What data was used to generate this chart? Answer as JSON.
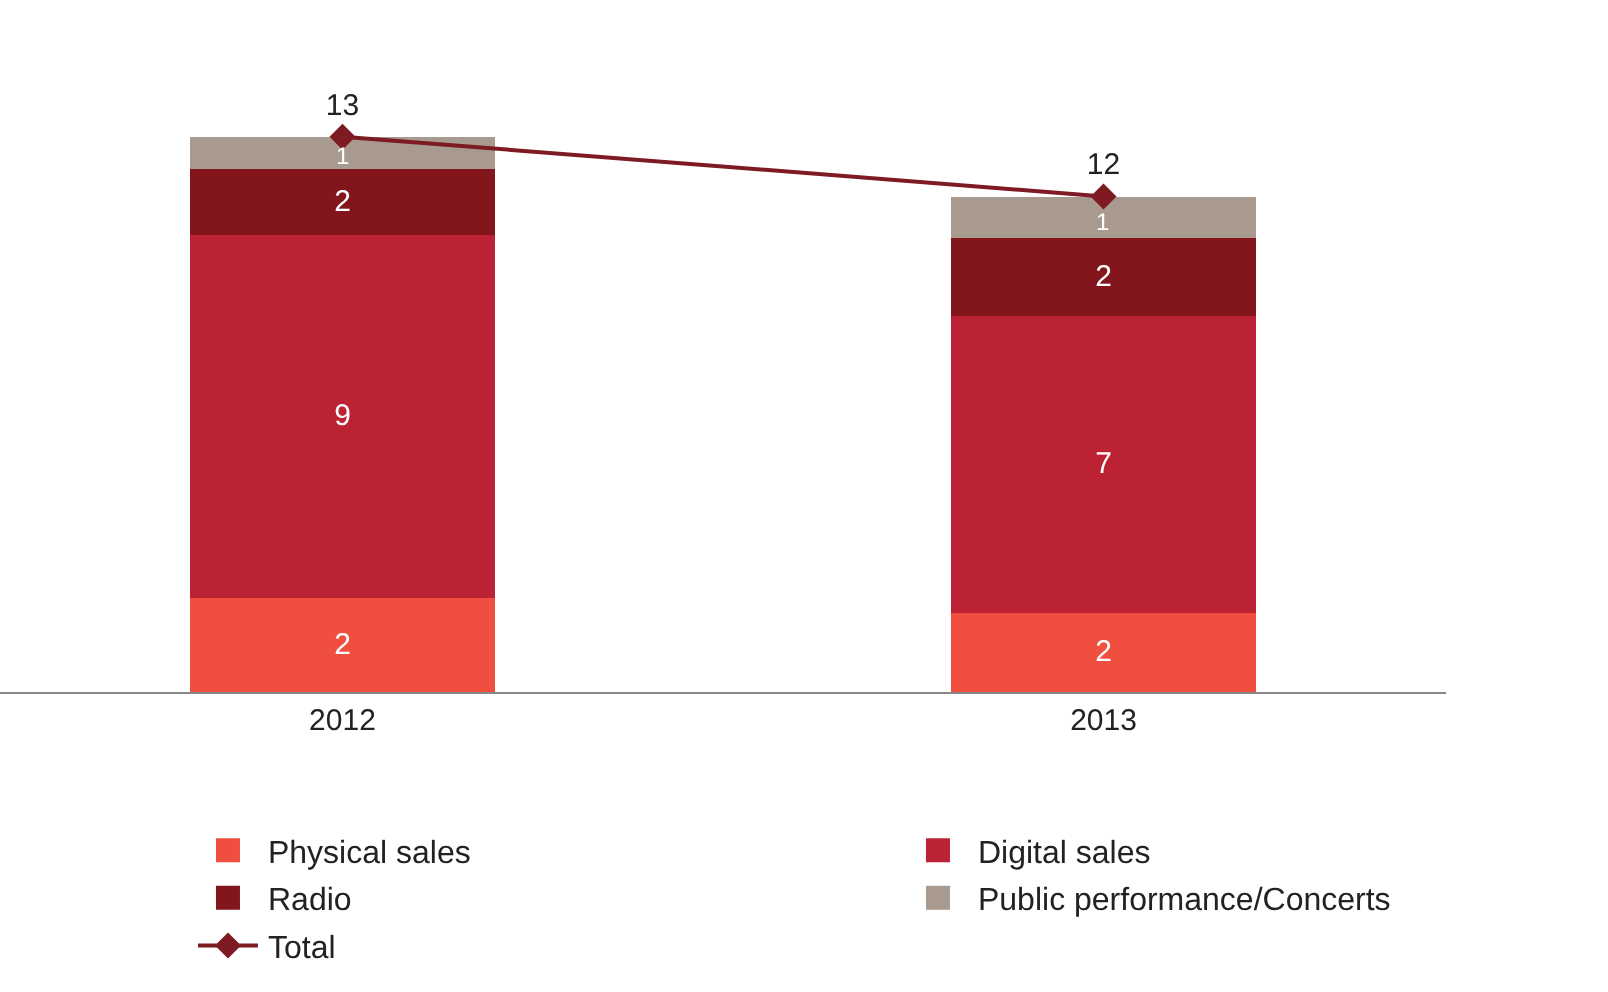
{
  "chart_data": {
    "type": "bar",
    "stacked": true,
    "categories": [
      "2012",
      "2013"
    ],
    "series": [
      {
        "name": "Physical sales",
        "color": "#f04e3e",
        "values": [
          2.2,
          1.85
        ],
        "value_labels": [
          "2",
          "2"
        ]
      },
      {
        "name": "Digital sales",
        "color": "#bb2233",
        "values": [
          8.5,
          6.96
        ],
        "value_labels": [
          "9",
          "7"
        ]
      },
      {
        "name": "Radio",
        "color": "#83151d",
        "values": [
          1.55,
          1.81
        ],
        "value_labels": [
          "2",
          "2"
        ]
      },
      {
        "name": "Public performance/Concerts",
        "color": "#a89a8f",
        "values": [
          0.75,
          0.97
        ],
        "value_labels": [
          "1",
          "1"
        ]
      },
      {
        "name": "Total",
        "type": "line",
        "color": "#7d1a22",
        "values": [
          13.0,
          11.6
        ],
        "value_labels": [
          "13",
          "12"
        ],
        "marker": "diamond",
        "line_style": "solid"
      }
    ],
    "legend": "bottom",
    "tick_labels": "x"
  }
}
